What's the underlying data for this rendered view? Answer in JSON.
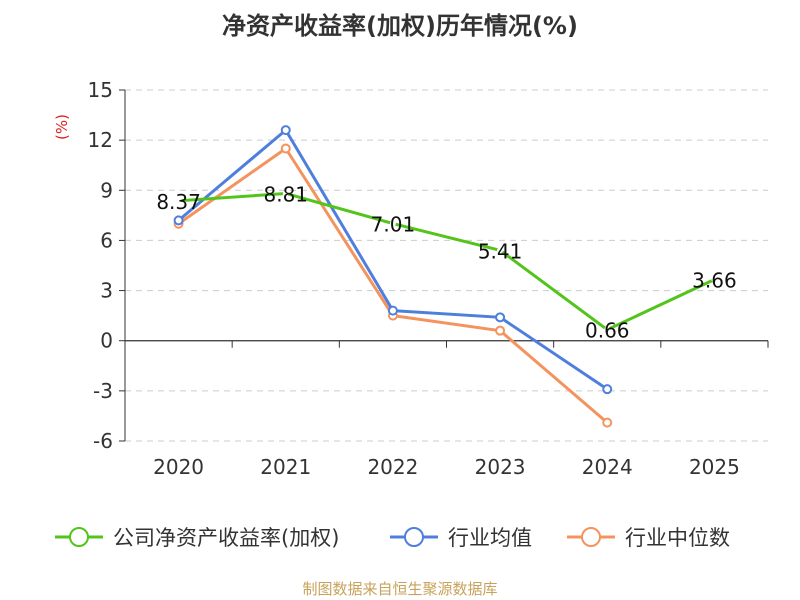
{
  "chart_data": {
    "type": "line",
    "title": "净资产收益率(加权)历年情况(%)",
    "ylabel": "(%)",
    "categories": [
      "2020",
      "2021",
      "2022",
      "2023",
      "2024",
      "2025"
    ],
    "ylim": [
      -6,
      15
    ],
    "yticks": [
      -6,
      -3,
      0,
      3,
      6,
      9,
      12,
      15
    ],
    "ytick_labels": [
      "-6",
      "-3",
      "0",
      "3",
      "6",
      "9",
      "12",
      "15"
    ],
    "grid": true,
    "legend_position": "bottom",
    "series": [
      {
        "name": "公司净资产收益率(加权)",
        "color": "#52c41a",
        "values": [
          8.37,
          8.81,
          7.01,
          5.41,
          0.66,
          3.66
        ],
        "labels": [
          "8.37",
          "8.81",
          "7.01",
          "5.41",
          "0.66",
          "3.66"
        ]
      },
      {
        "name": "行业均值",
        "color": "#4e7fdc",
        "values": [
          7.2,
          12.6,
          1.8,
          1.4,
          -2.9,
          null
        ]
      },
      {
        "name": "行业中位数",
        "color": "#f4935d",
        "values": [
          7.0,
          11.5,
          1.5,
          0.6,
          -4.9,
          null
        ]
      }
    ]
  },
  "source": "制图数据来自恒生聚源数据库"
}
